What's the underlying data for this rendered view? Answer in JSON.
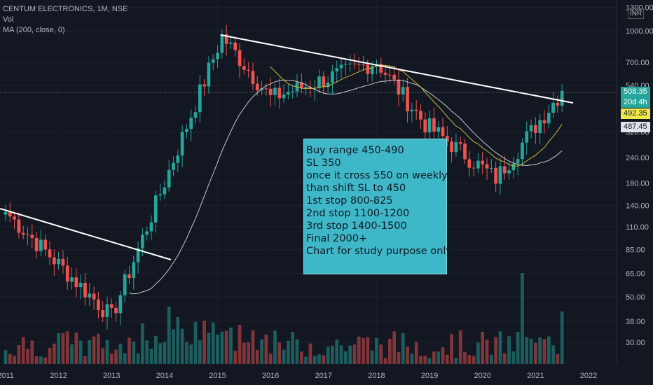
{
  "legend": {
    "symbol": "CENTUM ELECTRONICS, 1M, NSE",
    "volume": "Vol",
    "ma": "MA (200, close, 0)"
  },
  "currency": "INR",
  "note_lines": [
    "Buy range 450-490",
    "SL 350",
    "once it cross 550 on weekly",
    "than shift SL to 450",
    "1st stop 800-825",
    "2nd stop 1100-1200",
    "3rd stop 1400-1500",
    "Final 2000+",
    "Chart for study purpose only"
  ],
  "price_tags": {
    "last": "508.35",
    "countdown": "20d 4h",
    "ma_yellow": "492.35",
    "ma_white": "487.45"
  },
  "colors": {
    "background": "#131722",
    "up": "#26a69a",
    "down": "#ef5350",
    "ma_yellow": "#c9b53a",
    "ma_white": "#c8c8c8",
    "trendline": "#ffffff",
    "note_bg": "#3eb8c9"
  },
  "chart_data": {
    "type": "candlestick",
    "title": "CENTUM ELECTRONICS, 1M, NSE",
    "y_scale": "log",
    "y_ticks": [
      "1300.00",
      "1000.00",
      "700.00",
      "540.00",
      "320.00",
      "240.00",
      "180.00",
      "140.00",
      "110.00",
      "85.00",
      "65.00",
      "50.00",
      "38.00",
      "30.00"
    ],
    "x_ticks": [
      "2011",
      "2012",
      "2013",
      "2014",
      "2015",
      "2016",
      "2017",
      "2018",
      "2019",
      "2020",
      "2021",
      "2022"
    ],
    "key_points": [
      {
        "x": "2011-01",
        "price": 130
      },
      {
        "x": "2013-01",
        "price": 40
      },
      {
        "x": "2015-02",
        "price": 940
      },
      {
        "x": "2016-01",
        "price": 470
      },
      {
        "x": "2018-01",
        "price": 710
      },
      {
        "x": "2018-12",
        "price": 350
      },
      {
        "x": "2020-04",
        "price": 190
      },
      {
        "x": "2021-07",
        "price": 508.35
      }
    ],
    "volume_note": "volume histogram along the bottom, tallest bar late 2020"
  }
}
